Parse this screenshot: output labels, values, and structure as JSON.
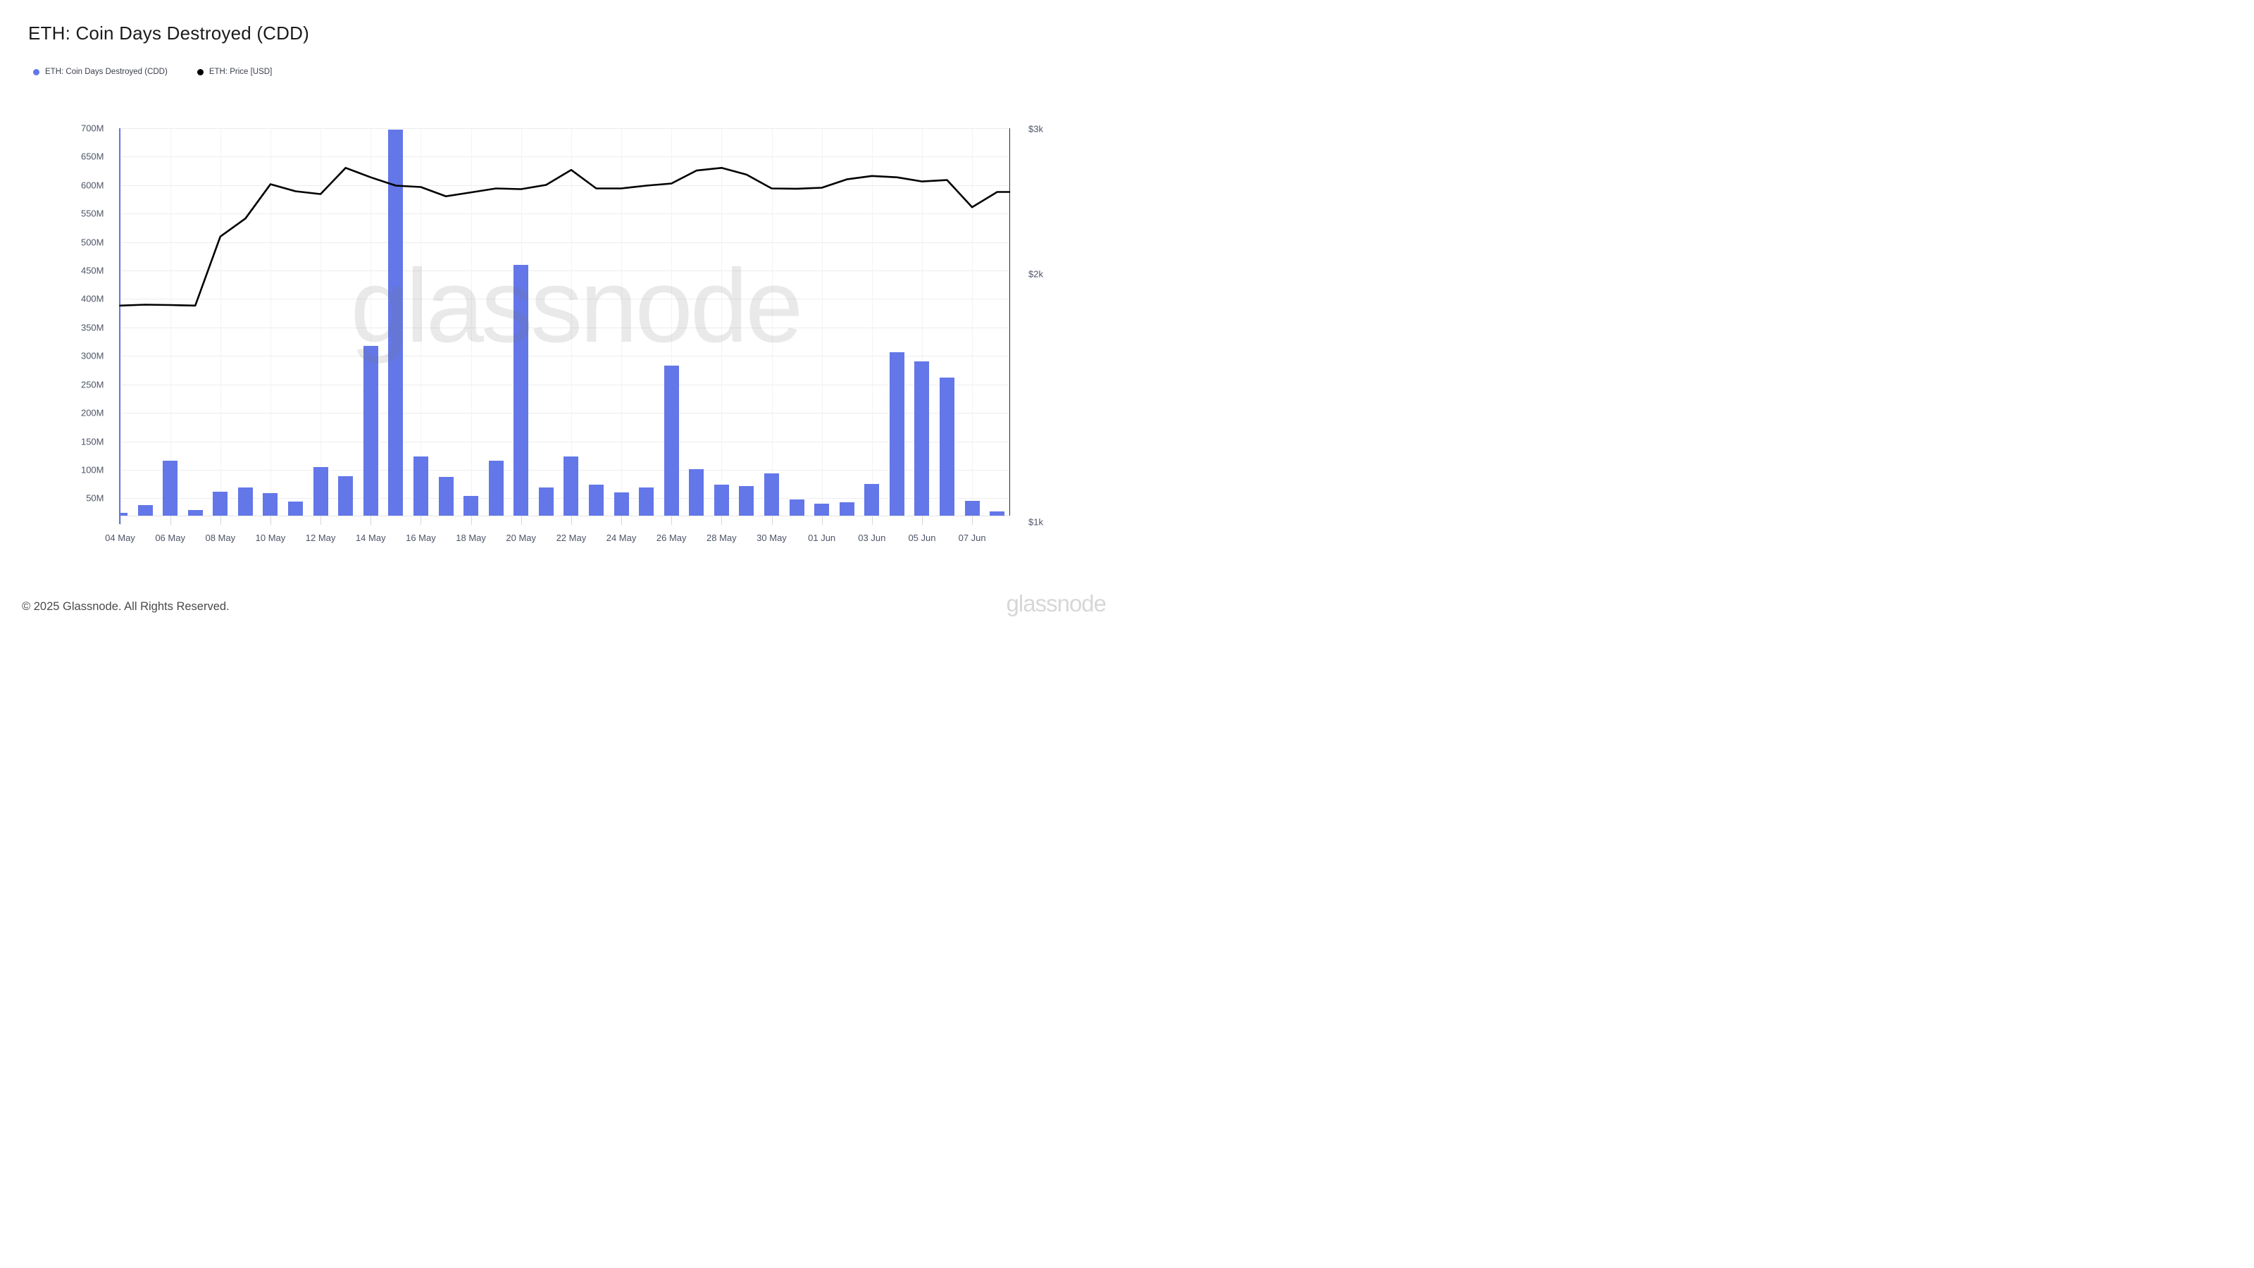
{
  "title": "ETH: Coin Days Destroyed (CDD)",
  "legend": {
    "items": [
      {
        "label": "ETH: Coin Days Destroyed (CDD)",
        "color": "#6377E8"
      },
      {
        "label": "ETH: Price [USD]",
        "color": "#000000"
      }
    ]
  },
  "watermark_text": "glassnode",
  "footer": {
    "copyright": "© 2025 Glassnode. All Rights Reserved.",
    "brand": "glassnode"
  },
  "colors": {
    "bar": "#6377E8",
    "line": "#000000",
    "grid_h": "#ededed",
    "grid_v": "#f3f3f3",
    "axis_left": "#6377E8",
    "axis_right": "#2a2a2a",
    "tick": "#d6d6d6",
    "axis_text": "#4d5466"
  },
  "chart_data": {
    "type": "bar",
    "title": "ETH: Coin Days Destroyed (CDD)",
    "grid": true,
    "legend_position": "top-left",
    "categories": [
      "04 May",
      "05 May",
      "06 May",
      "07 May",
      "08 May",
      "09 May",
      "10 May",
      "11 May",
      "12 May",
      "13 May",
      "14 May",
      "15 May",
      "16 May",
      "17 May",
      "18 May",
      "19 May",
      "20 May",
      "21 May",
      "22 May",
      "23 May",
      "24 May",
      "25 May",
      "26 May",
      "27 May",
      "28 May",
      "29 May",
      "30 May",
      "31 May",
      "01 Jun",
      "02 Jun",
      "03 Jun",
      "04 Jun",
      "05 Jun",
      "06 Jun",
      "07 Jun",
      "08 Jun"
    ],
    "x_tick_labels": [
      "04 May",
      "06 May",
      "08 May",
      "10 May",
      "12 May",
      "14 May",
      "16 May",
      "18 May",
      "20 May",
      "22 May",
      "24 May",
      "26 May",
      "28 May",
      "30 May",
      "01 Jun",
      "03 Jun",
      "05 Jun",
      "07 Jun"
    ],
    "series": [
      {
        "name": "ETH: Coin Days Destroyed (CDD)",
        "type": "bar",
        "axis": "left",
        "unit": "M coin-days",
        "color": "#6377E8",
        "values": [
          24,
          38,
          116,
          30,
          61,
          69,
          59,
          44,
          105,
          89,
          318,
          697,
          123,
          87,
          54,
          116,
          460,
          69,
          123,
          74,
          60,
          69,
          283,
          101,
          74,
          71,
          94,
          48,
          41,
          43,
          75,
          307,
          290,
          262,
          46,
          27
        ]
      },
      {
        "name": "ETH: Price [USD]",
        "type": "line",
        "axis": "right",
        "unit": "USD",
        "color": "#000000",
        "values": [
          1830,
          1835,
          1833,
          1830,
          2220,
          2335,
          2570,
          2520,
          2500,
          2690,
          2620,
          2560,
          2550,
          2485,
          2512,
          2540,
          2535,
          2565,
          2675,
          2540,
          2540,
          2560,
          2575,
          2670,
          2690,
          2640,
          2540,
          2538,
          2545,
          2605,
          2630,
          2620,
          2590,
          2600,
          2410,
          2515
        ]
      }
    ],
    "left_axis": {
      "scale": "linear",
      "min": 20,
      "max": 700,
      "tick_interval": 50,
      "unit": "M",
      "tick_labels": [
        "700M",
        "650M",
        "600M",
        "550M",
        "500M",
        "450M",
        "400M",
        "350M",
        "300M",
        "250M",
        "200M",
        "150M",
        "100M",
        "50M"
      ]
    },
    "right_axis": {
      "scale": "log",
      "min": 1000,
      "max": 3000,
      "tick_labels": [
        "$3k",
        "$2k",
        "$1k"
      ],
      "tick_values": [
        3000,
        2000,
        1000
      ]
    }
  }
}
